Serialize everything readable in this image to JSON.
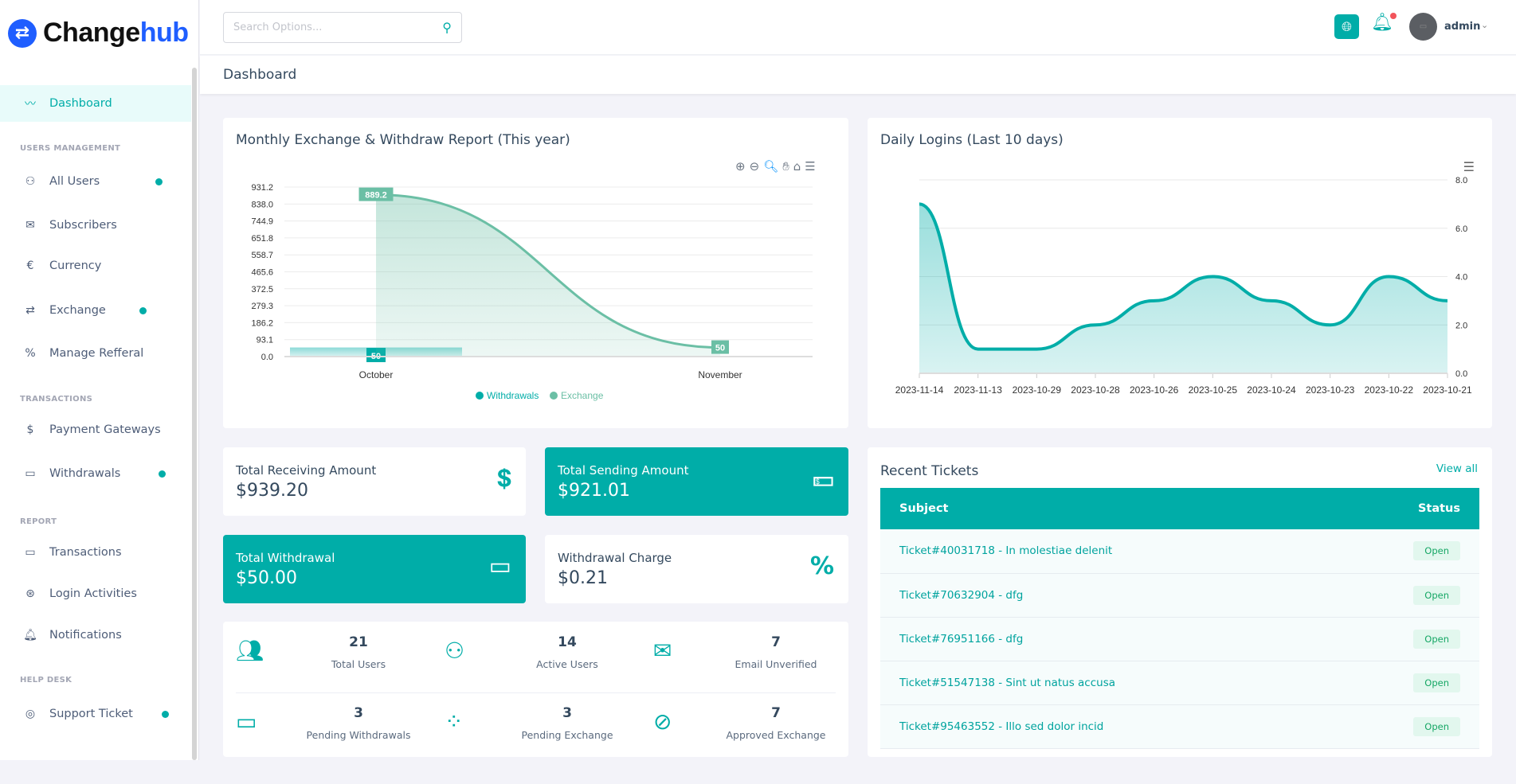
{
  "brand": {
    "name_a": "Change",
    "name_b": "hub"
  },
  "search": {
    "placeholder": "Search Options..."
  },
  "user": {
    "name": "admin"
  },
  "page_title": "Dashboard",
  "sidebar": {
    "sections": [
      "USERS MANAGEMENT",
      "TRANSACTIONS",
      "REPORT",
      "HELP DESK"
    ],
    "items": [
      {
        "label": "Dashboard",
        "icon": "chart-icon"
      },
      {
        "label": "All Users",
        "icon": "user-icon"
      },
      {
        "label": "Subscribers",
        "icon": "mail-icon"
      },
      {
        "label": "Currency",
        "icon": "euro-icon"
      },
      {
        "label": "Exchange",
        "icon": "exchange-icon"
      },
      {
        "label": "Manage Refferal",
        "icon": "percent-icon"
      },
      {
        "label": "Payment Gateways",
        "icon": "dollar-icon"
      },
      {
        "label": "Withdrawals",
        "icon": "card-icon"
      },
      {
        "label": "Transactions",
        "icon": "card-icon"
      },
      {
        "label": "Login Activities",
        "icon": "login-icon"
      },
      {
        "label": "Notifications",
        "icon": "bell-icon"
      },
      {
        "label": "Support Ticket",
        "icon": "lifebuoy-icon"
      }
    ]
  },
  "stats": {
    "receiving": {
      "label": "Total Receiving Amount",
      "value": "$939.20"
    },
    "sending": {
      "label": "Total Sending Amount",
      "value": "$921.01"
    },
    "withdrawal": {
      "label": "Total Withdrawal",
      "value": "$50.00"
    },
    "charge": {
      "label": "Withdrawal Charge",
      "value": "$0.21"
    }
  },
  "counters": [
    {
      "value": "21",
      "label": "Total Users"
    },
    {
      "value": "14",
      "label": "Active Users"
    },
    {
      "value": "7",
      "label": "Email Unverified"
    },
    {
      "value": "3",
      "label": "Pending Withdrawals"
    },
    {
      "value": "3",
      "label": "Pending Exchange"
    },
    {
      "value": "7",
      "label": "Approved Exchange"
    }
  ],
  "tickets": {
    "title": "Recent Tickets",
    "view_all": "View all",
    "headers": {
      "subject": "Subject",
      "status": "Status"
    },
    "rows": [
      {
        "subject": "Ticket#40031718 - In molestiae delenit",
        "status": "Open"
      },
      {
        "subject": "Ticket#70632904 - dfg",
        "status": "Open"
      },
      {
        "subject": "Ticket#76951166 - dfg",
        "status": "Open"
      },
      {
        "subject": "Ticket#51547138 - Sint ut natus accusa",
        "status": "Open"
      },
      {
        "subject": "Ticket#95463552 - Illo sed dolor incid",
        "status": "Open"
      }
    ]
  },
  "colors": {
    "accent": "#00ada8",
    "exchange": "#6bbfa5",
    "brand": "#1f5eff"
  },
  "chart_data": [
    {
      "type": "line",
      "title": "Monthly Exchange & Withdraw Report (This year)",
      "categories": [
        "October",
        "November"
      ],
      "yticks": [
        "0.0",
        "93.1",
        "186.2",
        "279.3",
        "372.5",
        "465.6",
        "558.7",
        "651.8",
        "744.9",
        "838.0",
        "931.2"
      ],
      "ylim": [
        0,
        931.2
      ],
      "series": [
        {
          "name": "Withdrawals",
          "type": "bar",
          "values": [
            50,
            null
          ],
          "labels": [
            "50"
          ]
        },
        {
          "name": "Exchange",
          "type": "area",
          "values": [
            889.2,
            50
          ],
          "labels": [
            "889.2",
            "50"
          ]
        }
      ],
      "legend": "bottom-center"
    },
    {
      "type": "area",
      "title": "Daily Logins (Last 10 days)",
      "categories": [
        "2023-11-14",
        "2023-11-13",
        "2023-10-29",
        "2023-10-28",
        "2023-10-26",
        "2023-10-25",
        "2023-10-24",
        "2023-10-23",
        "2023-10-22",
        "2023-10-21"
      ],
      "values": [
        7,
        1,
        1,
        2,
        3,
        4,
        3,
        2,
        4,
        3
      ],
      "yticks": [
        "0.0",
        "2.0",
        "4.0",
        "6.0",
        "8.0"
      ],
      "ylim": [
        0,
        8
      ],
      "yaxis": "right"
    }
  ]
}
